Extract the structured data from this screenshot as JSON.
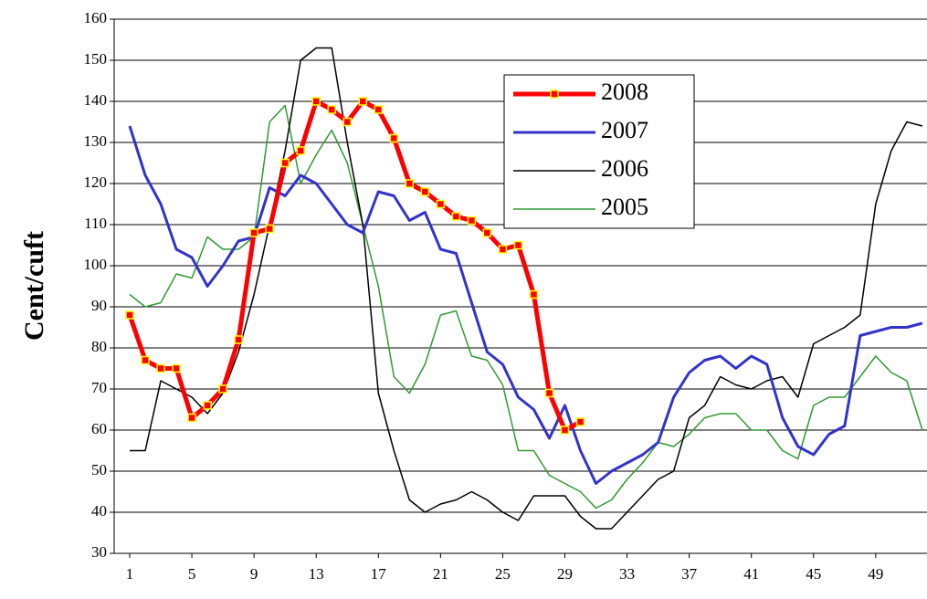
{
  "chart_data": {
    "type": "line",
    "y_label": "Cent/cuft",
    "x": [
      1,
      2,
      3,
      4,
      5,
      6,
      7,
      8,
      9,
      10,
      11,
      12,
      13,
      14,
      15,
      16,
      17,
      18,
      19,
      20,
      21,
      22,
      23,
      24,
      25,
      26,
      27,
      28,
      29,
      30,
      31,
      32,
      33,
      34,
      35,
      36,
      37,
      38,
      39,
      40,
      41,
      42,
      43,
      44,
      45,
      46,
      47,
      48,
      49,
      50,
      51,
      52
    ],
    "xlim": [
      0,
      52.3
    ],
    "xticks": [
      1,
      5,
      9,
      13,
      17,
      21,
      25,
      29,
      33,
      37,
      41,
      45,
      49
    ],
    "ylim": [
      30,
      160
    ],
    "yticks": [
      30,
      40,
      50,
      60,
      70,
      80,
      90,
      100,
      110,
      120,
      130,
      140,
      150,
      160
    ],
    "grid": true,
    "legend": "top-center",
    "series": [
      {
        "name": "2008",
        "color": "#ff0000",
        "width": 5,
        "marker": true,
        "marker_color": "#ffff00",
        "values": [
          88,
          77,
          75,
          75,
          63,
          66,
          70,
          82,
          108,
          109,
          125,
          128,
          140,
          138,
          135,
          140,
          138,
          131,
          120,
          118,
          115,
          112,
          111,
          108,
          104,
          105,
          93,
          69,
          60,
          62,
          null,
          null,
          null,
          null,
          null,
          null,
          null,
          null,
          null,
          null,
          null,
          null,
          null,
          null,
          null,
          null,
          null,
          null,
          null,
          null,
          null,
          null
        ]
      },
      {
        "name": "2007",
        "color": "#3333cc",
        "width": 3,
        "marker": false,
        "values": [
          134,
          122,
          115,
          104,
          102,
          95,
          100,
          106,
          107,
          119,
          117,
          122,
          120,
          115,
          110,
          108,
          118,
          117,
          111,
          113,
          104,
          103,
          91,
          79,
          76,
          68,
          65,
          58,
          66,
          55,
          47,
          50,
          52,
          54,
          57,
          68,
          74,
          77,
          78,
          75,
          78,
          76,
          63,
          56,
          54,
          59,
          61,
          83,
          84,
          85,
          85,
          86
        ]
      },
      {
        "name": "2006",
        "color": "#000000",
        "width": 1.5,
        "marker": false,
        "values": [
          55,
          55,
          72,
          70,
          68,
          64,
          69,
          79,
          93,
          110,
          128,
          150,
          153,
          153,
          130,
          110,
          69,
          55,
          43,
          40,
          42,
          43,
          45,
          43,
          40,
          38,
          44,
          44,
          44,
          39,
          36,
          36,
          40,
          44,
          48,
          50,
          63,
          66,
          73,
          71,
          70,
          72,
          73,
          68,
          81,
          83,
          85,
          88,
          115,
          128,
          135,
          134
        ]
      },
      {
        "name": "2005",
        "color": "#339933",
        "width": 1.5,
        "marker": false,
        "values": [
          93,
          90,
          91,
          98,
          97,
          107,
          104,
          104,
          107,
          135,
          139,
          120,
          127,
          133,
          125,
          110,
          95,
          73,
          69,
          76,
          88,
          89,
          78,
          77,
          71,
          55,
          55,
          49,
          47,
          45,
          41,
          43,
          48,
          52,
          57,
          56,
          59,
          63,
          64,
          64,
          60,
          60,
          55,
          53,
          66,
          68,
          68,
          73,
          78,
          74,
          72,
          60
        ]
      }
    ]
  }
}
